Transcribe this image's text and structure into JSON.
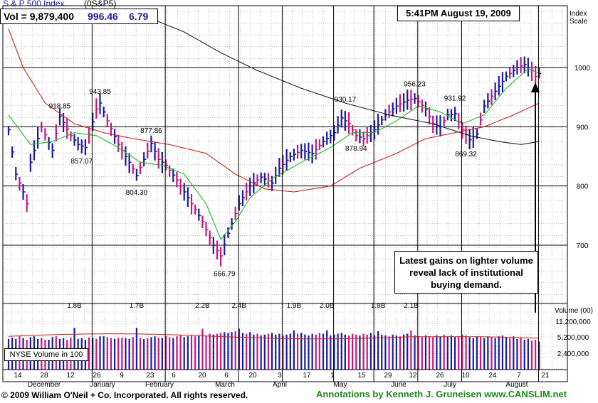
{
  "header": {
    "title": "S & P 500 Index",
    "symbol": "(0S&P5)",
    "volume_text": "Vol = 9,879,400",
    "price": "996.46",
    "change": "6.79",
    "timestamp": "5:41PM August 19, 2009"
  },
  "price_scale_title_1": "Index",
  "price_scale_title_2": "Scale",
  "volume_scale_title": "Volume (00)",
  "nyse_label": "NYSE Volume in 100",
  "annotation_note": "Latest gains on lighter volume reveal lack of institutional buying demand.",
  "footer": {
    "copyright": "© 2009 William O'Neil + Co. Incorporated. All rights reserved.",
    "annotations": "Annotations by Kenneth J. Gruneisen www.CANSLIM.net"
  },
  "colors": {
    "up_bar": "#1a1a9c",
    "down_bar": "#c8167c",
    "ma_short": "#1dbb1d",
    "ma_mid": "#cc2222",
    "ma_long": "#222222",
    "volume_ma": "#cc2222",
    "annotation_text": "#1c8a1c"
  },
  "chart_data": {
    "type": "bar",
    "title": "S & P 500 Index",
    "price_ticks": [
      "1000",
      "900",
      "800",
      "700"
    ],
    "price_tick_values": [
      1000,
      900,
      800,
      700
    ],
    "ylim": [
      600,
      1080
    ],
    "volume_ticks": [
      "11,200,000",
      "5,200,000",
      "2,400,000"
    ],
    "volume_tick_values": [
      11200000,
      5200000,
      2400000
    ],
    "day_ticks": [
      "14",
      "28",
      "12",
      "26",
      "9",
      "23",
      "6",
      "20",
      "6",
      "20",
      "3",
      "17",
      "1",
      "15",
      "29",
      "12",
      "26",
      "10",
      "24",
      "7",
      "21"
    ],
    "month_labels": [
      "December",
      "January",
      "February",
      "March",
      "April",
      "May",
      "June",
      "July",
      "August"
    ],
    "price_annotations": [
      {
        "label": "918.85",
        "value": 918.85,
        "day": 14
      },
      {
        "label": "857.07",
        "value": 857.07,
        "day": 20
      },
      {
        "label": "943.85",
        "value": 943.85,
        "day": 25
      },
      {
        "label": "804.30",
        "value": 804.3,
        "day": 35
      },
      {
        "label": "877.86",
        "value": 877.86,
        "day": 39
      },
      {
        "label": "666.79",
        "value": 666.79,
        "day": 59
      },
      {
        "label": "930.17",
        "value": 930.17,
        "day": 92
      },
      {
        "label": "878.94",
        "value": 878.94,
        "day": 95
      },
      {
        "label": "956.23",
        "value": 956.23,
        "day": 111
      },
      {
        "label": "931.92",
        "value": 931.92,
        "day": 122
      },
      {
        "label": "869.32",
        "value": 869.32,
        "day": 125
      }
    ],
    "volume_annotations": [
      {
        "label": "1.8B",
        "day": 18
      },
      {
        "label": "1.7B",
        "day": 35
      },
      {
        "label": "2.2B",
        "day": 53
      },
      {
        "label": "2.4B",
        "day": 63
      },
      {
        "label": "1.9B",
        "day": 78
      },
      {
        "label": "2.0B",
        "day": 87
      },
      {
        "label": "1.8B",
        "day": 101
      },
      {
        "label": "2.1B",
        "day": 110
      }
    ],
    "anchors": [
      [
        0,
        895
      ],
      [
        2,
        820
      ],
      [
        4,
        790
      ],
      [
        5,
        770
      ],
      [
        6,
        840
      ],
      [
        9,
        900
      ],
      [
        12,
        860
      ],
      [
        14,
        918
      ],
      [
        17,
        885
      ],
      [
        19,
        870
      ],
      [
        21,
        865
      ],
      [
        24,
        930
      ],
      [
        25,
        940
      ],
      [
        27,
        910
      ],
      [
        30,
        870
      ],
      [
        33,
        840
      ],
      [
        35,
        818
      ],
      [
        37,
        845
      ],
      [
        39,
        872
      ],
      [
        41,
        845
      ],
      [
        43,
        835
      ],
      [
        46,
        810
      ],
      [
        48,
        790
      ],
      [
        51,
        760
      ],
      [
        53,
        740
      ],
      [
        56,
        700
      ],
      [
        58,
        682
      ],
      [
        60,
        720
      ],
      [
        63,
        770
      ],
      [
        66,
        800
      ],
      [
        69,
        815
      ],
      [
        72,
        805
      ],
      [
        74,
        830
      ],
      [
        77,
        850
      ],
      [
        80,
        860
      ],
      [
        83,
        855
      ],
      [
        86,
        875
      ],
      [
        89,
        890
      ],
      [
        91,
        915
      ],
      [
        93,
        905
      ],
      [
        95,
        885
      ],
      [
        97,
        880
      ],
      [
        100,
        895
      ],
      [
        103,
        920
      ],
      [
        106,
        935
      ],
      [
        109,
        945
      ],
      [
        111,
        948
      ],
      [
        114,
        930
      ],
      [
        116,
        905
      ],
      [
        118,
        900
      ],
      [
        120,
        920
      ],
      [
        122,
        922
      ],
      [
        124,
        895
      ],
      [
        126,
        878
      ],
      [
        128,
        888
      ],
      [
        130,
        935
      ],
      [
        133,
        960
      ],
      [
        136,
        985
      ],
      [
        139,
        1000
      ],
      [
        141,
        1005
      ],
      [
        143,
        995
      ],
      [
        144,
        985
      ],
      [
        145,
        990
      ]
    ],
    "down_days": [
      3,
      5,
      9,
      10,
      13,
      16,
      17,
      22,
      24,
      27,
      28,
      30,
      31,
      34,
      36,
      38,
      41,
      43,
      44,
      46,
      47,
      50,
      51,
      53,
      54,
      55,
      57,
      58,
      62,
      65,
      68,
      71,
      75,
      79,
      84,
      85,
      93,
      94,
      95,
      97,
      98,
      104,
      107,
      110,
      112,
      113,
      115,
      116,
      119,
      123,
      124,
      125,
      129,
      132,
      137,
      140,
      143,
      144
    ],
    "ma_short_anchors": [
      [
        0,
        920
      ],
      [
        6,
        870
      ],
      [
        12,
        875
      ],
      [
        18,
        890
      ],
      [
        24,
        885
      ],
      [
        30,
        865
      ],
      [
        36,
        840
      ],
      [
        42,
        835
      ],
      [
        48,
        820
      ],
      [
        54,
        770
      ],
      [
        58,
        710
      ],
      [
        62,
        740
      ],
      [
        66,
        780
      ],
      [
        72,
        812
      ],
      [
        80,
        840
      ],
      [
        88,
        865
      ],
      [
        94,
        890
      ],
      [
        100,
        890
      ],
      [
        106,
        910
      ],
      [
        112,
        935
      ],
      [
        118,
        925
      ],
      [
        124,
        905
      ],
      [
        130,
        920
      ],
      [
        136,
        965
      ],
      [
        142,
        998
      ],
      [
        145,
        990
      ]
    ],
    "ma_mid_anchors": [
      [
        0,
        1065
      ],
      [
        4,
        1000
      ],
      [
        10,
        940
      ],
      [
        18,
        905
      ],
      [
        26,
        890
      ],
      [
        34,
        880
      ],
      [
        44,
        870
      ],
      [
        54,
        855
      ],
      [
        62,
        820
      ],
      [
        70,
        795
      ],
      [
        78,
        790
      ],
      [
        88,
        800
      ],
      [
        96,
        830
      ],
      [
        106,
        855
      ],
      [
        114,
        880
      ],
      [
        122,
        890
      ],
      [
        130,
        900
      ],
      [
        138,
        920
      ],
      [
        145,
        940
      ]
    ],
    "ma_long_anchors": [
      [
        40,
        1080
      ],
      [
        48,
        1060
      ],
      [
        58,
        1025
      ],
      [
        68,
        995
      ],
      [
        80,
        965
      ],
      [
        92,
        940
      ],
      [
        104,
        920
      ],
      [
        116,
        905
      ],
      [
        126,
        885
      ],
      [
        134,
        875
      ],
      [
        140,
        870
      ],
      [
        145,
        875
      ]
    ],
    "volume_levels": [
      0.72,
      0.75,
      0.72,
      0.78,
      0.74,
      0.7,
      0.76,
      0.78,
      0.72,
      0.74,
      0.7,
      0.7,
      0.76,
      0.78,
      0.72,
      0.74,
      0.7,
      0.75,
      0.98,
      0.72,
      0.74,
      0.7,
      0.75,
      0.74,
      0.72,
      0.78,
      0.78,
      0.76,
      0.74,
      0.72,
      0.74,
      0.75,
      0.74,
      0.72,
      0.76,
      0.98,
      0.74,
      0.72,
      0.74,
      0.76,
      0.78,
      0.75,
      0.74,
      0.78,
      0.76,
      0.74,
      0.78,
      0.8,
      0.76,
      0.78,
      0.8,
      0.78,
      0.8,
      0.96,
      0.8,
      0.84,
      0.82,
      0.84,
      0.86,
      0.88,
      0.86,
      0.88,
      0.9,
      0.96,
      0.86,
      0.84,
      0.88,
      0.82,
      0.84,
      0.8,
      0.82,
      0.84,
      0.86,
      0.82,
      0.84,
      0.8,
      0.82,
      0.84,
      0.92,
      0.84,
      0.86,
      0.82,
      0.8,
      0.84,
      0.82,
      0.86,
      0.84,
      0.92,
      0.8,
      0.82,
      0.84,
      0.86,
      0.82,
      0.8,
      0.84,
      0.82,
      0.8,
      0.84,
      0.82,
      0.86,
      0.8,
      0.9,
      0.82,
      0.8,
      0.78,
      0.82,
      0.8,
      0.78,
      0.82,
      0.84,
      0.92,
      0.8,
      0.78,
      0.76,
      0.8,
      0.78,
      0.76,
      0.8,
      0.78,
      0.82,
      0.78,
      0.8,
      0.76,
      0.78,
      0.82,
      0.8,
      0.76,
      0.74,
      0.78,
      0.76,
      0.74,
      0.78,
      0.76,
      0.74,
      0.78,
      0.8,
      0.76,
      0.74,
      0.78,
      0.72,
      0.74,
      0.7,
      0.72,
      0.68,
      0.7,
      0.66
    ]
  }
}
